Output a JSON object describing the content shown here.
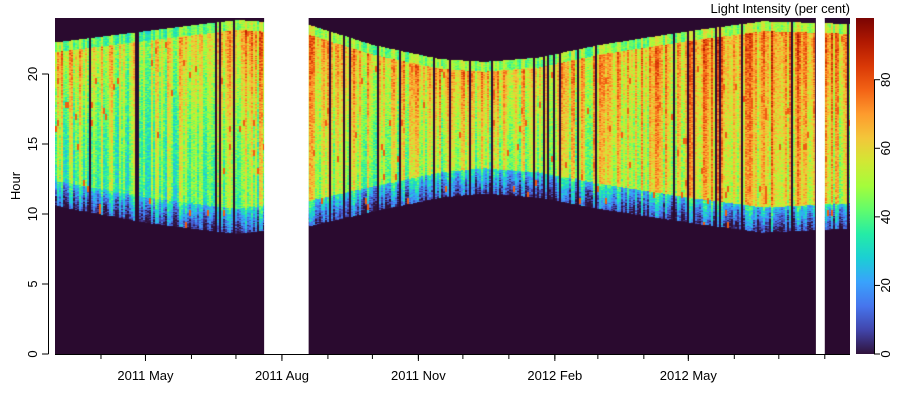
{
  "chart_data": {
    "type": "heatmap",
    "ylabel": "Hour",
    "colorbar_title": "Light Intensity (per cent)",
    "x_range": [
      "2011-03-01",
      "2012-08-18"
    ],
    "y_range": [
      0,
      24
    ],
    "x_tick_labels": [
      {
        "date": "2011-05-01",
        "label": "2011 May"
      },
      {
        "date": "2011-08-01",
        "label": "2011 Aug"
      },
      {
        "date": "2011-11-01",
        "label": "2011 Nov"
      },
      {
        "date": "2012-02-01",
        "label": "2012 Feb"
      },
      {
        "date": "2012-05-01",
        "label": "2012 May"
      }
    ],
    "y_ticks": [
      0,
      5,
      10,
      15,
      20
    ],
    "colorbar_ticks": [
      0,
      20,
      40,
      60,
      80
    ],
    "colorbar_range": [
      0,
      98
    ],
    "colormap": [
      "#30123b",
      "#4145ab",
      "#4675ed",
      "#39a2fc",
      "#1bcfd4",
      "#24eca6",
      "#61fc6c",
      "#a4fc3b",
      "#d1e834",
      "#f3c63a",
      "#fe9b2d",
      "#f36315",
      "#d93806",
      "#b11901",
      "#7a0403"
    ],
    "background_color": "#2a0a2f",
    "data_gaps": [
      [
        "2011-07-20",
        "2011-08-19"
      ],
      [
        "2012-07-26",
        "2012-08-01"
      ]
    ],
    "day_length": [
      {
        "date": "2011-03-01",
        "sunrise": 11.2,
        "sunset": 22.0
      },
      {
        "date": "2011-05-01",
        "sunrise": 10.0,
        "sunset": 22.8
      },
      {
        "date": "2011-07-01",
        "sunrise": 9.2,
        "sunset": 23.6
      },
      {
        "date": "2011-08-20",
        "sunrise": 9.8,
        "sunset": 23.2
      },
      {
        "date": "2011-10-01",
        "sunrise": 10.8,
        "sunset": 21.8
      },
      {
        "date": "2011-11-15",
        "sunrise": 11.8,
        "sunset": 20.8
      },
      {
        "date": "2011-12-15",
        "sunrise": 12.1,
        "sunset": 20.6
      },
      {
        "date": "2012-01-20",
        "sunrise": 11.8,
        "sunset": 20.9
      },
      {
        "date": "2012-03-01",
        "sunrise": 11.0,
        "sunset": 21.8
      },
      {
        "date": "2012-05-01",
        "sunrise": 10.0,
        "sunset": 22.8
      },
      {
        "date": "2012-06-20",
        "sunrise": 9.3,
        "sunset": 23.5
      },
      {
        "date": "2012-08-18",
        "sunrise": 9.6,
        "sunset": 23.3
      }
    ],
    "intensity_profile": [
      {
        "date": "2011-03-01",
        "midday": 42,
        "evening": 68
      },
      {
        "date": "2011-05-01",
        "midday": 40,
        "evening": 55
      },
      {
        "date": "2011-07-10",
        "midday": 45,
        "evening": 72
      },
      {
        "date": "2011-08-20",
        "midday": 52,
        "evening": 70
      },
      {
        "date": "2011-10-15",
        "midday": 48,
        "evening": 66
      },
      {
        "date": "2011-12-15",
        "midday": 50,
        "evening": 68
      },
      {
        "date": "2012-02-15",
        "midday": 52,
        "evening": 64
      },
      {
        "date": "2012-05-01",
        "midday": 58,
        "evening": 70
      },
      {
        "date": "2012-07-01",
        "midday": 62,
        "evening": 75
      },
      {
        "date": "2012-08-18",
        "midday": 55,
        "evening": 72
      }
    ]
  }
}
